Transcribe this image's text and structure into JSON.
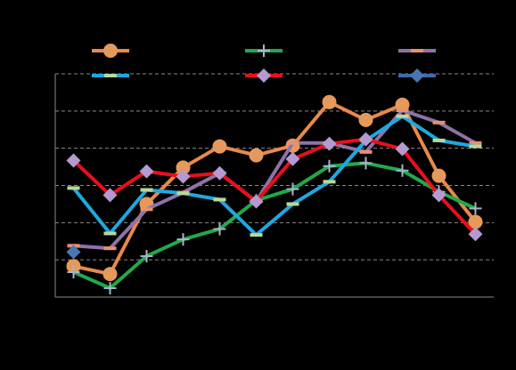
{
  "chart_data": {
    "type": "line",
    "categories": [
      null,
      null,
      null,
      null,
      null,
      null,
      null,
      null,
      null,
      null,
      null,
      null
    ],
    "ylim": [
      0,
      6
    ],
    "yticks": [
      0,
      1,
      2,
      3,
      4,
      5,
      6
    ],
    "grid": true,
    "series": [
      {
        "color": "#e8894a",
        "marker": "circle",
        "marker_color": "#e59a5c",
        "values": [
          0.83,
          0.62,
          2.5,
          3.48,
          4.05,
          3.81,
          4.07,
          5.24,
          4.76,
          5.17,
          3.26,
          2.02
        ]
      },
      {
        "color": "#22a84a",
        "marker": "plus",
        "marker_color": "#a8b4cc",
        "values": [
          0.67,
          0.24,
          1.1,
          1.55,
          1.83,
          2.6,
          2.9,
          3.52,
          3.6,
          3.4,
          2.83,
          2.38
        ]
      },
      {
        "color": "#8e72a8",
        "marker": "dash",
        "marker_color": "#e89070",
        "values": [
          1.38,
          1.31,
          2.36,
          2.81,
          3.33,
          2.57,
          4.14,
          4.14,
          3.9,
          5.02,
          4.69,
          4.14
        ]
      },
      {
        "color": "#1fa8e0",
        "marker": "dash",
        "marker_color": "#b8d89a",
        "values": [
          2.93,
          1.71,
          2.88,
          2.79,
          2.62,
          1.67,
          2.5,
          3.1,
          4.21,
          4.86,
          4.21,
          4.05
        ]
      },
      {
        "color": "#e8101a",
        "marker": "diamond",
        "marker_color": "#b49ad0",
        "values": [
          3.67,
          2.74,
          3.38,
          3.24,
          3.33,
          2.57,
          3.71,
          4.12,
          4.24,
          3.98,
          2.74,
          1.69
        ]
      },
      {
        "color": "#3d6aa8",
        "marker": "diamond",
        "marker_color": "#4a76b4",
        "values": [
          1.21,
          null,
          null,
          null,
          null,
          null,
          null,
          null,
          null,
          null,
          null,
          null
        ]
      }
    ]
  }
}
